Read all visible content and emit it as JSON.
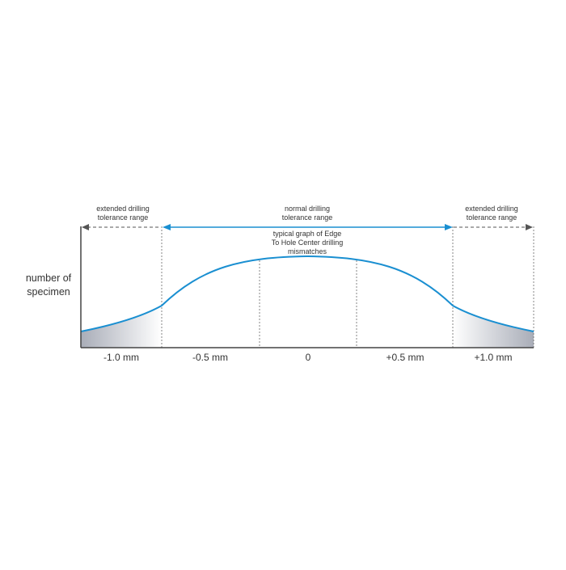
{
  "diagram": {
    "y_label_line1": "number of",
    "y_label_line2": "specimen",
    "x_ticks": [
      "-1.0 mm",
      "-0.5 mm",
      "0",
      "+0.5 mm",
      "+1.0 mm"
    ],
    "left_range": {
      "line1": "extended drilling",
      "line2": "tolerance range"
    },
    "center_range": {
      "line1": "normal drilling",
      "line2": "tolerance range"
    },
    "right_range": {
      "line1": "extended drilling",
      "line2": "tolerance range"
    },
    "curve_label": {
      "line1": "typical graph of Edge",
      "line2": "To Hole Center drilling",
      "line3": "mismatches"
    },
    "colors": {
      "curve": "#1a8fd1",
      "normal_arrow": "#1a8fd1",
      "extended_arrow": "#555555",
      "axis": "#444444",
      "shade": "#a9adb8"
    }
  }
}
